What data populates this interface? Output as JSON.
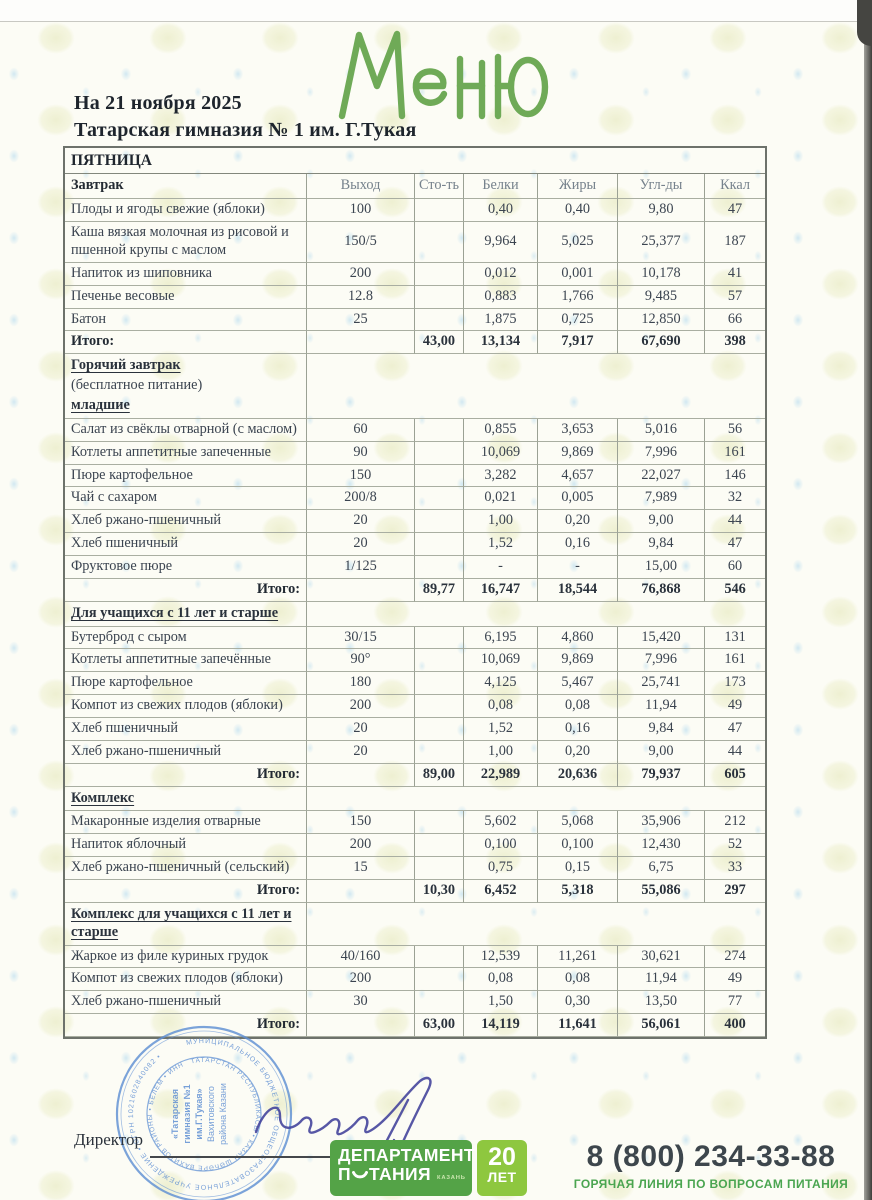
{
  "document": {
    "script_title": "Меню",
    "date_line": "На 21 ноября 2025",
    "school_name": "Татарская гимназия № 1 им. Г.Тукая",
    "director_label": "Директор"
  },
  "menu_table": {
    "day": "ПЯТНИЦА",
    "columns": [
      "Завтрак",
      "Выход",
      "Сто-ть",
      "Белки",
      "Жиры",
      "Угл-ды",
      "Ккал"
    ],
    "sections": [
      {
        "title_lines": [],
        "rows": [
          {
            "name": "Плоды и ягоды свежие (яблоки)",
            "out": "100",
            "protein": "0,40",
            "fat": "0,40",
            "carbs": "9,80",
            "kcal": "47"
          },
          {
            "name": "Каша вязкая молочная из рисовой и пшенной крупы с маслом",
            "out": "150/5",
            "protein": "9,964",
            "fat": "5,025",
            "carbs": "25,377",
            "kcal": "187"
          },
          {
            "name": "Напиток из шиповника",
            "out": "200",
            "protein": "0,012",
            "fat": "0,001",
            "carbs": "10,178",
            "kcal": "41"
          },
          {
            "name": "Печенье весовые",
            "out": "12.8",
            "protein": "0,883",
            "fat": "1,766",
            "carbs": "9,485",
            "kcal": "57"
          },
          {
            "name": "Батон",
            "out": "25",
            "protein": "1,875",
            "fat": "0,725",
            "carbs": "12,850",
            "kcal": "66"
          }
        ],
        "total": {
          "label": "Итого:",
          "cost": "43,00",
          "protein": "13,134",
          "fat": "7,917",
          "carbs": "67,690",
          "kcal": "398",
          "label_align": "left"
        }
      },
      {
        "title_lines": [
          {
            "text": "Горячий завтрак",
            "emphasis": true
          },
          {
            "text": "(бесплатное питание)",
            "emphasis": false
          },
          {
            "text": "младшие",
            "emphasis": true
          }
        ],
        "rows": [
          {
            "name": "Салат из свёклы отварной (с маслом)",
            "out": "60",
            "protein": "0,855",
            "fat": "3,653",
            "carbs": "5,016",
            "kcal": "56"
          },
          {
            "name": "Котлеты аппетитные запеченные",
            "out": "90",
            "protein": "10,069",
            "fat": "9,869",
            "carbs": "7,996",
            "kcal": "161"
          },
          {
            "name": "Пюре картофельное",
            "out": "150",
            "protein": "3,282",
            "fat": "4,657",
            "carbs": "22,027",
            "kcal": "146"
          },
          {
            "name": "Чай с сахаром",
            "out": "200/8",
            "protein": "0,021",
            "fat": "0,005",
            "carbs": "7,989",
            "kcal": "32"
          },
          {
            "name": "Хлеб ржано-пшеничный",
            "out": "20",
            "protein": "1,00",
            "fat": "0,20",
            "carbs": "9,00",
            "kcal": "44"
          },
          {
            "name": "Хлеб пшеничный",
            "out": "20",
            "protein": "1,52",
            "fat": "0,16",
            "carbs": "9,84",
            "kcal": "47"
          },
          {
            "name": "Фруктовое пюре",
            "out": "1/125",
            "protein": "-",
            "fat": "-",
            "carbs": "15,00",
            "kcal": "60"
          }
        ],
        "total": {
          "label": "Итого:",
          "cost": "89,77",
          "protein": "16,747",
          "fat": "18,544",
          "carbs": "76,868",
          "kcal": "546",
          "label_align": "right"
        }
      },
      {
        "title_lines": [
          {
            "text": "Для учащихся с 11 лет и старше",
            "emphasis": true
          }
        ],
        "rows": [
          {
            "name": "Бутерброд с сыром",
            "out": "30/15",
            "protein": "6,195",
            "fat": "4,860",
            "carbs": "15,420",
            "kcal": "131"
          },
          {
            "name": "Котлеты аппетитные запечённые",
            "out": "90°",
            "protein": "10,069",
            "fat": "9,869",
            "carbs": "7,996",
            "kcal": "161"
          },
          {
            "name": "Пюре картофельное",
            "out": "180",
            "protein": "4,125",
            "fat": "5,467",
            "carbs": "25,741",
            "kcal": "173"
          },
          {
            "name": "Компот из свежих плодов (яблоки)",
            "out": "200",
            "protein": "0,08",
            "fat": "0,08",
            "carbs": "11,94",
            "kcal": "49"
          },
          {
            "name": "Хлеб пшеничный",
            "out": "20",
            "protein": "1,52",
            "fat": "0,16",
            "carbs": "9,84",
            "kcal": "47"
          },
          {
            "name": "Хлеб ржано-пшеничный",
            "out": "20",
            "protein": "1,00",
            "fat": "0,20",
            "carbs": "9,00",
            "kcal": "44"
          }
        ],
        "total": {
          "label": "Итого:",
          "cost": "89,00",
          "protein": "22,989",
          "fat": "20,636",
          "carbs": "79,937",
          "kcal": "605",
          "label_align": "right"
        }
      },
      {
        "title_lines": [
          {
            "text": "Комплекс",
            "emphasis": true
          }
        ],
        "rows": [
          {
            "name": "Макаронные изделия отварные",
            "out": "150",
            "protein": "5,602",
            "fat": "5,068",
            "carbs": "35,906",
            "kcal": "212"
          },
          {
            "name": "Напиток яблочный",
            "out": "200",
            "protein": "0,100",
            "fat": "0,100",
            "carbs": "12,430",
            "kcal": "52"
          },
          {
            "name": "Хлеб ржано-пшеничный (сельский)",
            "out": "15",
            "protein": "0,75",
            "fat": "0,15",
            "carbs": "6,75",
            "kcal": "33"
          }
        ],
        "total": {
          "label": "Итого:",
          "cost": "10,30",
          "protein": "6,452",
          "fat": "5,318",
          "carbs": "55,086",
          "kcal": "297",
          "label_align": "right"
        }
      },
      {
        "title_lines": [
          {
            "text": "Комплекс для учащихся с 11 лет и старше",
            "emphasis": true
          }
        ],
        "rows": [
          {
            "name": "Жаркое из филе куриных грудок",
            "out": "40/160",
            "protein": "12,539",
            "fat": "11,261",
            "carbs": "30,621",
            "kcal": "274"
          },
          {
            "name": "Компот из свежих плодов (яблоки)",
            "out": "200",
            "protein": "0,08",
            "fat": "0,08",
            "carbs": "11,94",
            "kcal": "49"
          },
          {
            "name": "Хлеб ржано-пшеничный",
            "out": "30",
            "protein": "1,50",
            "fat": "0,30",
            "carbs": "13,50",
            "kcal": "77"
          }
        ],
        "total": {
          "label": "Итого:",
          "cost": "63,00",
          "protein": "14,119",
          "fat": "11,641",
          "carbs": "56,061",
          "kcal": "400",
          "label_align": "right"
        }
      }
    ]
  },
  "stamp": {
    "ring_outer": "МУНИЦИПАЛЬНОЕ БЮДЖЕТНОЕ ОБЩЕОБРАЗОВАТЕЛЬНОЕ УЧРЕЖДЕНИЕ • ОГРН 1021602840082 •",
    "ring_inner": "ТАТАРСТАН РЕСПУБЛИКАСЫ • КАЗАН ШӘҺӘРЕ ВАХИТОВ РАЙОНЫ • БЕЛЕМ • ИНН",
    "center_lines": [
      "«Татарская",
      "гимназия №1",
      "им.Г.Тукая»",
      "Вахитовского",
      "района Казани"
    ]
  },
  "footer": {
    "department_logo": {
      "line1": "ДЕПАРТАМЕНТ",
      "line2_prefix": "П",
      "line2_suffix": "ТАНИЯ",
      "city_label": "КАЗАНЬ"
    },
    "anniversary_badge": {
      "number": "20",
      "unit": "ЛЕТ"
    },
    "phone_number": "8 (800) 234-33-88",
    "hotline_label": "ГОРЯЧАЯ ЛИНИЯ ПО ВОПРОСАМ ПИТАНИЯ"
  }
}
